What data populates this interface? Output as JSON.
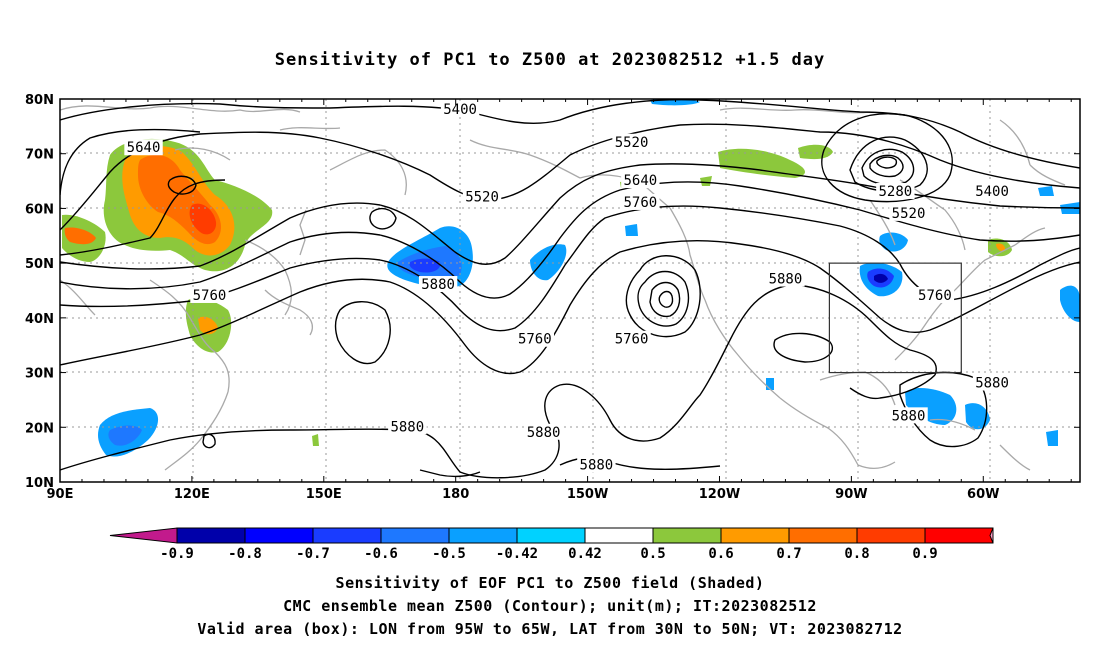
{
  "title": "Sensitivity of PC1 to Z500 at 2023082512 +1.5 day",
  "map": {
    "lon_labels": [
      {
        "lon": 90,
        "text": "90E"
      },
      {
        "lon": 120,
        "text": "120E"
      },
      {
        "lon": 150,
        "text": "150E"
      },
      {
        "lon": 180,
        "text": "180"
      },
      {
        "lon": 210,
        "text": "150W"
      },
      {
        "lon": 240,
        "text": "120W"
      },
      {
        "lon": 270,
        "text": "90W"
      },
      {
        "lon": 300,
        "text": "60W"
      }
    ],
    "lat_labels": [
      {
        "lat": 80,
        "text": "80N"
      },
      {
        "lat": 70,
        "text": "70N"
      },
      {
        "lat": 60,
        "text": "60N"
      },
      {
        "lat": 50,
        "text": "50N"
      },
      {
        "lat": 40,
        "text": "40N"
      },
      {
        "lat": 30,
        "text": "30N"
      },
      {
        "lat": 20,
        "text": "20N"
      },
      {
        "lat": 10,
        "text": "10N"
      }
    ],
    "lon_range": [
      90,
      322
    ],
    "lat_range": [
      10,
      80
    ],
    "contour_labels": [
      {
        "text": "5400",
        "lon": 181,
        "lat": 78
      },
      {
        "text": "5640",
        "lon": 109,
        "lat": 71
      },
      {
        "text": "5520",
        "lon": 186,
        "lat": 62
      },
      {
        "text": "5520",
        "lon": 220,
        "lat": 72
      },
      {
        "text": "5640",
        "lon": 222,
        "lat": 65
      },
      {
        "text": "5760",
        "lon": 222,
        "lat": 61
      },
      {
        "text": "5280",
        "lon": 280,
        "lat": 63
      },
      {
        "text": "5400",
        "lon": 302,
        "lat": 63
      },
      {
        "text": "5520",
        "lon": 283,
        "lat": 59
      },
      {
        "text": "5760",
        "lon": 124,
        "lat": 44
      },
      {
        "text": "5880",
        "lon": 176,
        "lat": 46
      },
      {
        "text": "5760",
        "lon": 198,
        "lat": 36
      },
      {
        "text": "5760",
        "lon": 220,
        "lat": 36
      },
      {
        "text": "5880",
        "lon": 255,
        "lat": 47
      },
      {
        "text": "5760",
        "lon": 289,
        "lat": 44
      },
      {
        "text": "5880",
        "lon": 302,
        "lat": 28
      },
      {
        "text": "5880",
        "lon": 283,
        "lat": 22
      },
      {
        "text": "5880",
        "lon": 169,
        "lat": 20
      },
      {
        "text": "5880",
        "lon": 200,
        "lat": 19
      },
      {
        "text": "5880",
        "lon": 212,
        "lat": 13
      }
    ],
    "valid_box": {
      "lon_min": 265,
      "lon_max": 295,
      "lat_min": 30,
      "lat_max": 50
    }
  },
  "colorbar": {
    "labels": [
      "-0.9",
      "-0.8",
      "-0.7",
      "-0.6",
      "-0.5",
      "-0.42",
      "0.42",
      "0.5",
      "0.6",
      "0.7",
      "0.8",
      "0.9"
    ],
    "colors": [
      "#c21a8c",
      "#0000aa",
      "#0000ff",
      "#1a3cff",
      "#1e78ff",
      "#0aa0ff",
      "#00d2ff",
      "#ffffff",
      "#8cc83c",
      "#ff9b00",
      "#ff6e00",
      "#ff3c00",
      "#ff0000",
      "#ffa0c8"
    ]
  },
  "captions": {
    "line1": "Sensitivity of EOF PC1 to Z500 field (Shaded)",
    "line2": "CMC ensemble mean Z500 (Contour); unit(m); IT:2023082512",
    "line3": "Valid area (box): LON from 95W to 65W, LAT from 30N to 50N; VT: 2023082712"
  }
}
